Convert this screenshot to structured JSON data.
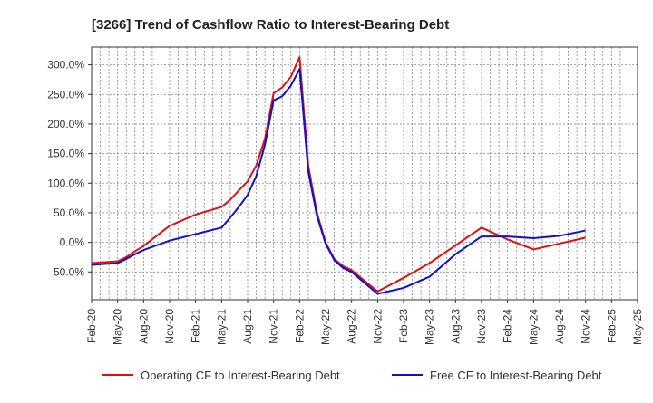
{
  "chart_data": {
    "type": "line",
    "title": "[3266]  Trend of Cashflow Ratio to Interest-Bearing Debt",
    "xlabel": "",
    "ylabel": "",
    "x_ticks": [
      "Feb-20",
      "May-20",
      "Aug-20",
      "Nov-20",
      "Feb-21",
      "May-21",
      "Aug-21",
      "Nov-21",
      "Feb-22",
      "May-22",
      "Aug-22",
      "Nov-22",
      "Feb-23",
      "May-23",
      "Aug-23",
      "Nov-23",
      "Feb-24",
      "May-24",
      "Aug-24",
      "Nov-24",
      "Feb-25",
      "May-25"
    ],
    "y_ticks": [
      "300.0%",
      "250.0%",
      "200.0%",
      "150.0%",
      "100.0%",
      "50.0%",
      "0.0%",
      "-50.0%"
    ],
    "y_tick_values": [
      300,
      250,
      200,
      150,
      100,
      50,
      0,
      -50
    ],
    "ylim": [
      -97,
      330
    ],
    "xlim": [
      "Feb-20",
      "May-25"
    ],
    "grid": true,
    "legend_position": "bottom",
    "series": [
      {
        "name": "Operating CF to Interest-Bearing Debt",
        "color": "#dd1111",
        "points": [
          [
            "Feb-20",
            -35
          ],
          [
            "May-20",
            -32
          ],
          [
            "Jun-20",
            -25
          ],
          [
            "Jul-20",
            -15
          ],
          [
            "Aug-20",
            -6
          ],
          [
            "Nov-20",
            28
          ],
          [
            "Feb-21",
            47
          ],
          [
            "May-21",
            60
          ],
          [
            "Jun-21",
            72
          ],
          [
            "Jul-21",
            88
          ],
          [
            "Aug-21",
            103
          ],
          [
            "Sep-21",
            130
          ],
          [
            "Oct-21",
            175
          ],
          [
            "Nov-21",
            252
          ],
          [
            "Dec-21",
            262
          ],
          [
            "Jan-22",
            280
          ],
          [
            "Feb-22",
            313
          ],
          [
            "Mar-22",
            130
          ],
          [
            "Apr-22",
            50
          ],
          [
            "May-22",
            0
          ],
          [
            "Jun-22",
            -28
          ],
          [
            "Jul-22",
            -40
          ],
          [
            "Aug-22",
            -47
          ],
          [
            "Nov-22",
            -83
          ],
          [
            "Feb-23",
            -60
          ],
          [
            "May-23",
            -35
          ],
          [
            "Aug-23",
            -5
          ],
          [
            "Nov-23",
            25
          ],
          [
            "Feb-24",
            5
          ],
          [
            "May-24",
            -12
          ],
          [
            "Aug-24",
            -2
          ],
          [
            "Nov-24",
            8
          ]
        ]
      },
      {
        "name": "Free CF to Interest-Bearing Debt",
        "color": "#1111cc",
        "points": [
          [
            "Feb-20",
            -38
          ],
          [
            "May-20",
            -35
          ],
          [
            "Jun-20",
            -28
          ],
          [
            "Jul-20",
            -20
          ],
          [
            "Aug-20",
            -13
          ],
          [
            "Nov-20",
            3
          ],
          [
            "Feb-21",
            14
          ],
          [
            "May-21",
            25
          ],
          [
            "Jun-21",
            42
          ],
          [
            "Jul-21",
            60
          ],
          [
            "Aug-21",
            80
          ],
          [
            "Sep-21",
            112
          ],
          [
            "Oct-21",
            165
          ],
          [
            "Nov-21",
            240
          ],
          [
            "Dec-21",
            247
          ],
          [
            "Jan-22",
            265
          ],
          [
            "Feb-22",
            293
          ],
          [
            "Mar-22",
            120
          ],
          [
            "Apr-22",
            45
          ],
          [
            "May-22",
            -2
          ],
          [
            "Jun-22",
            -30
          ],
          [
            "Jul-22",
            -43
          ],
          [
            "Aug-22",
            -50
          ],
          [
            "Nov-22",
            -87
          ],
          [
            "Feb-23",
            -77
          ],
          [
            "May-23",
            -58
          ],
          [
            "Aug-23",
            -20
          ],
          [
            "Nov-23",
            10
          ],
          [
            "Feb-24",
            10
          ],
          [
            "May-24",
            7
          ],
          [
            "Aug-24",
            11
          ],
          [
            "Nov-24",
            20
          ]
        ]
      }
    ]
  }
}
